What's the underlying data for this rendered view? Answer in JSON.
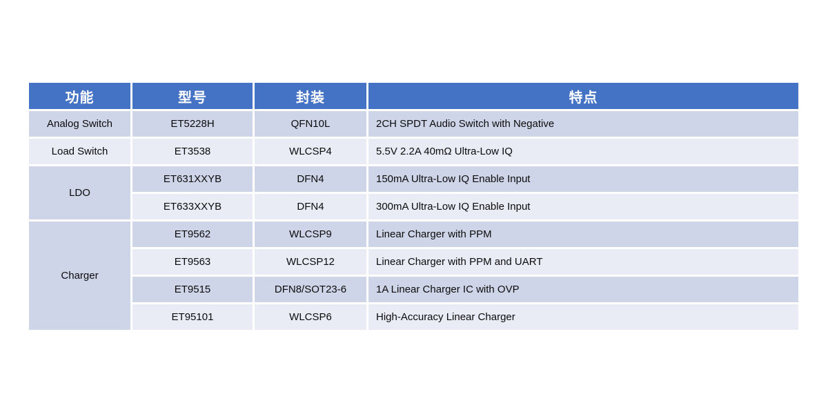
{
  "table": {
    "headers": [
      "功能",
      "型号",
      "封装",
      "特点"
    ],
    "groups": [
      {
        "function": "Analog Switch",
        "rows": [
          {
            "model": "ET5228H",
            "package": "QFN10L",
            "feature": "2CH SPDT Audio Switch with Negative"
          }
        ]
      },
      {
        "function": "Load Switch",
        "rows": [
          {
            "model": "ET3538",
            "package": "WLCSP4",
            "feature": "5.5V 2.2A 40mΩ Ultra-Low IQ"
          }
        ]
      },
      {
        "function": "LDO",
        "rows": [
          {
            "model": "ET631XXYB",
            "package": "DFN4",
            "feature": "150mA Ultra-Low IQ Enable Input"
          },
          {
            "model": "ET633XXYB",
            "package": "DFN4",
            "feature": "300mA Ultra-Low IQ Enable Input"
          }
        ]
      },
      {
        "function": "Charger",
        "rows": [
          {
            "model": "ET9562",
            "package": "WLCSP9",
            "feature": "Linear Charger with PPM"
          },
          {
            "model": "ET9563",
            "package": "WLCSP12",
            "feature": "Linear Charger with PPM and UART"
          },
          {
            "model": "ET9515",
            "package": "DFN8/SOT23-6",
            "feature": "1A Linear Charger IC with OVP"
          },
          {
            "model": "ET95101",
            "package": "WLCSP6",
            "feature": "High-Accuracy Linear Charger"
          }
        ]
      }
    ],
    "colors": {
      "header_bg": "#4472C4",
      "header_text": "#FFFFFF",
      "row_dark": "#CFD5E8",
      "row_light": "#E9ECF5"
    }
  },
  "chart_data": {
    "type": "table",
    "title": "",
    "columns": [
      "功能",
      "型号",
      "封装",
      "特点"
    ],
    "rows": [
      [
        "Analog Switch",
        "ET5228H",
        "QFN10L",
        "2CH SPDT Audio Switch with Negative"
      ],
      [
        "Load Switch",
        "ET3538",
        "WLCSP4",
        "5.5V 2.2A 40mΩ Ultra-Low IQ"
      ],
      [
        "LDO",
        "ET631XXYB",
        "DFN4",
        "150mA Ultra-Low IQ Enable Input"
      ],
      [
        "LDO",
        "ET633XXYB",
        "DFN4",
        "300mA Ultra-Low IQ Enable Input"
      ],
      [
        "Charger",
        "ET9562",
        "WLCSP9",
        "Linear Charger with PPM"
      ],
      [
        "Charger",
        "ET9563",
        "WLCSP12",
        "Linear Charger with PPM and UART"
      ],
      [
        "Charger",
        "ET9515",
        "DFN8/SOT23-6",
        "1A Linear Charger IC with OVP"
      ],
      [
        "Charger",
        "ET95101",
        "WLCSP6",
        "High-Accuracy Linear Charger"
      ]
    ],
    "merged_cells": [
      {
        "column": "功能",
        "value": "LDO",
        "row_span": 2
      },
      {
        "column": "功能",
        "value": "Charger",
        "row_span": 4
      }
    ],
    "layout_hints": {
      "header_style": "blue background, white bold text",
      "row_banding": "alternating lavender/light per row",
      "grid": "white gutters between cells"
    }
  }
}
